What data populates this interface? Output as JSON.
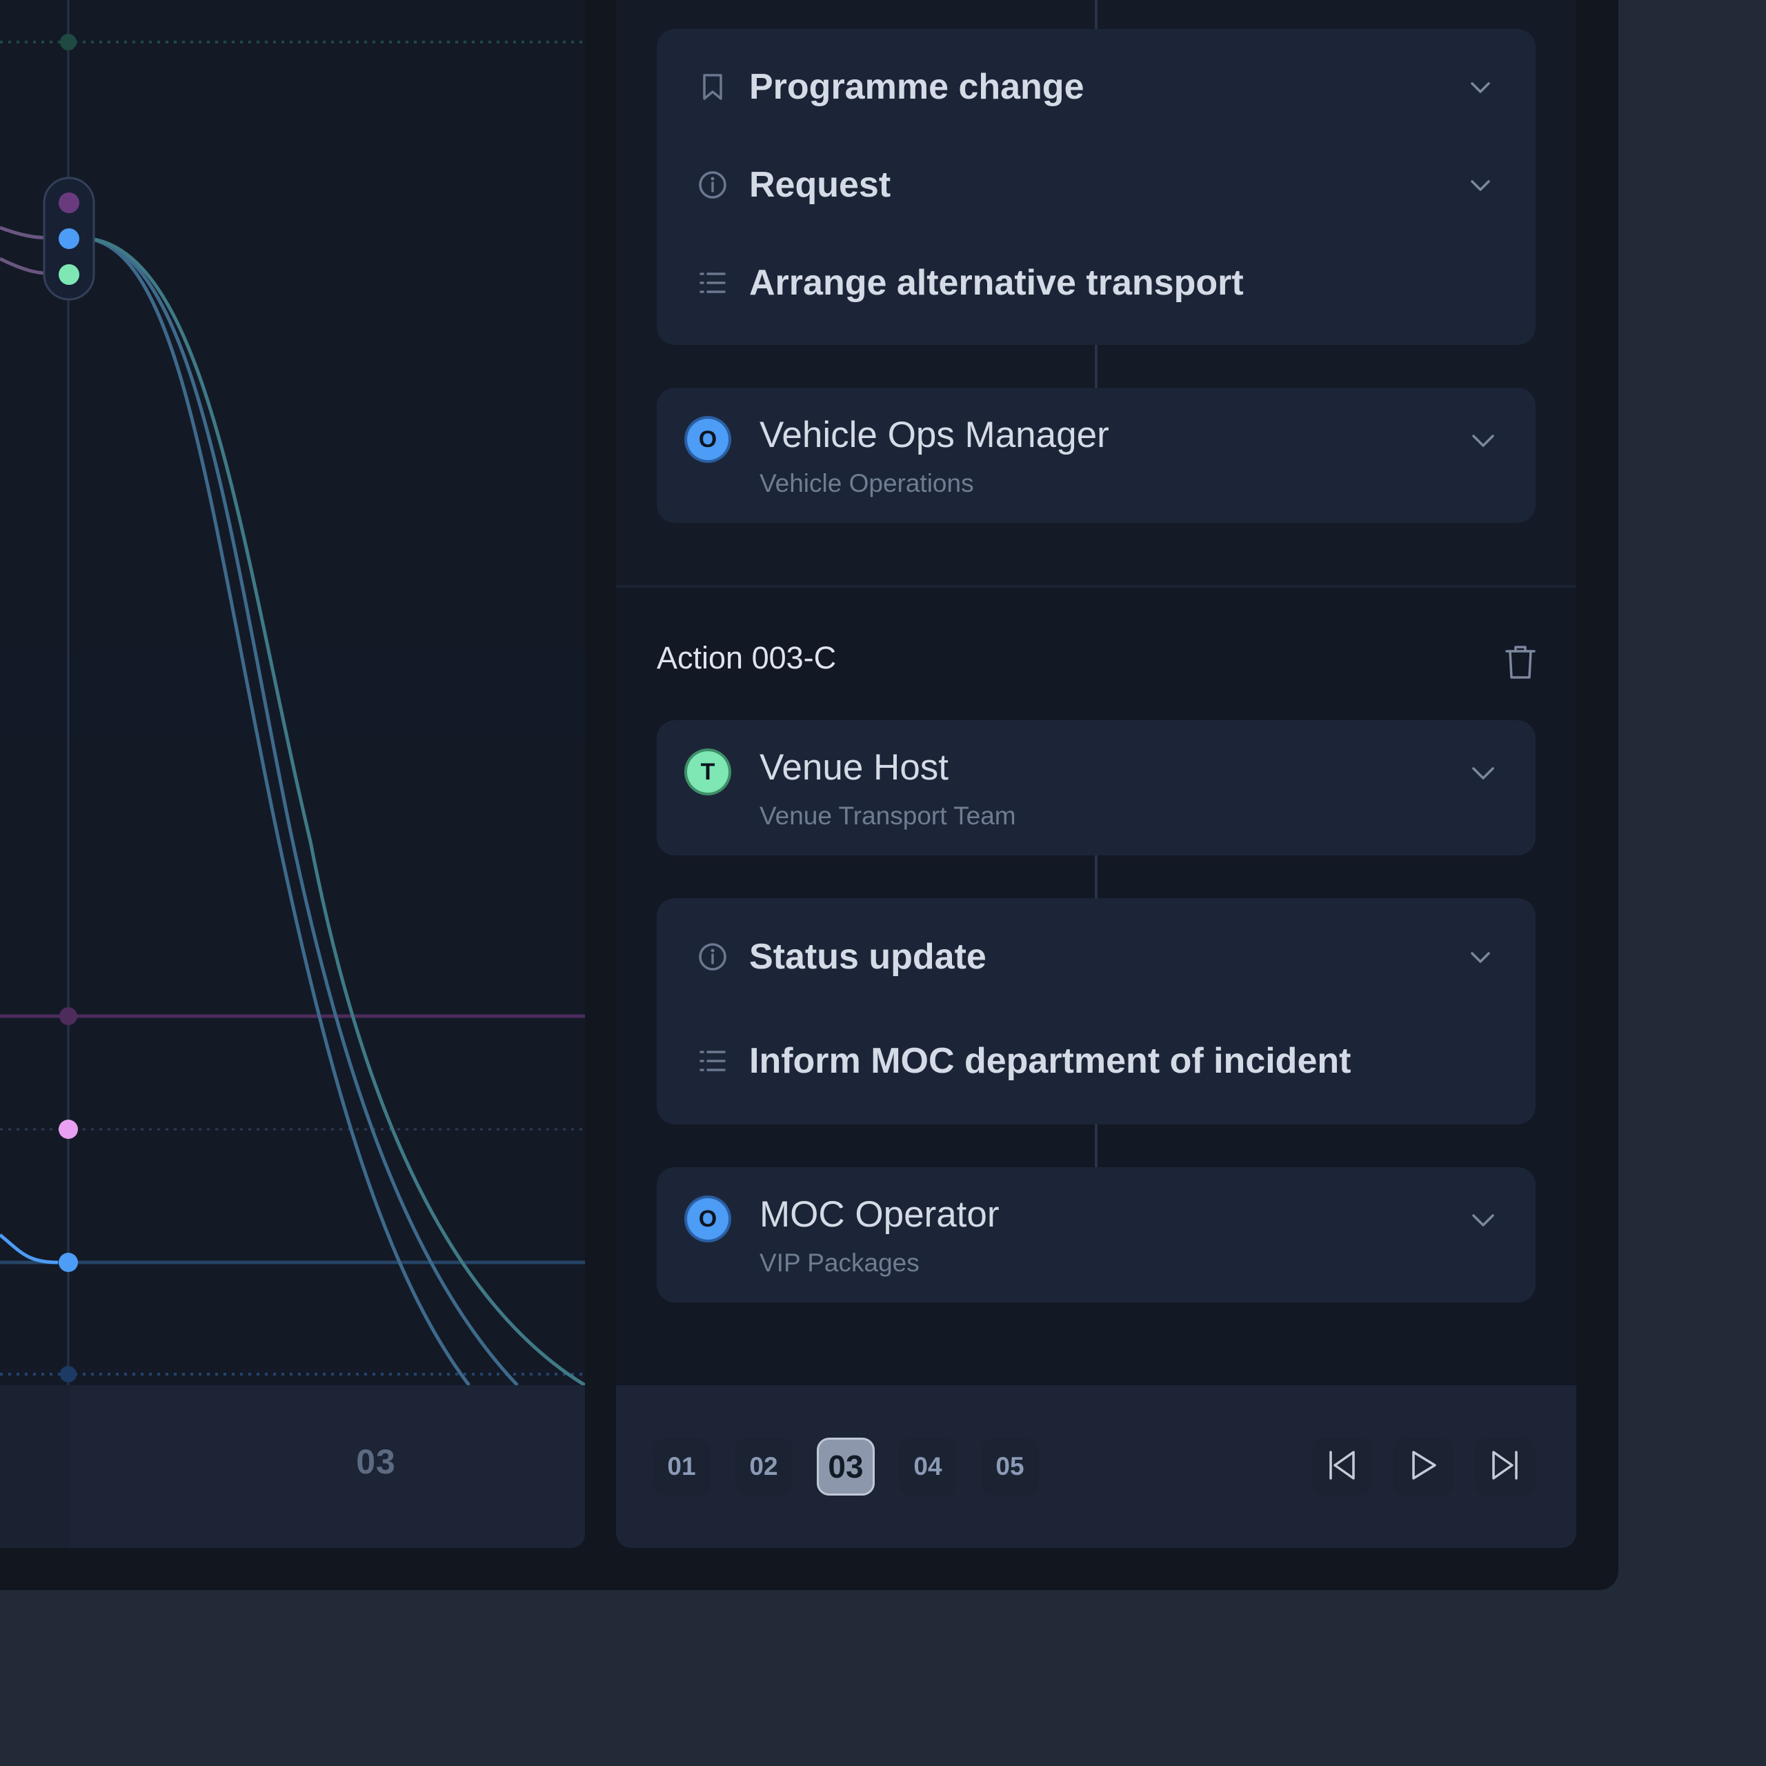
{
  "graph": {
    "column_label": "03"
  },
  "detail": {
    "flow_card": {
      "type_label": "Programme change",
      "category_label": "Request",
      "description": "Arrange alternative transport"
    },
    "assignee_1": {
      "initial": "O",
      "name": "Vehicle Ops Manager",
      "department": "Vehicle Operations",
      "avatar_color": "#4d9cf5"
    },
    "action": {
      "title": "Action 003-C",
      "assignee": {
        "initial": "T",
        "name": "Venue Host",
        "department": "Venue Transport Team",
        "avatar_color": "#7ee7b4"
      },
      "flow_card": {
        "category_label": "Status update",
        "description": "Inform MOC department of incident"
      },
      "recipient": {
        "initial": "O",
        "name": "MOC Operator",
        "department": "VIP Packages",
        "avatar_color": "#4d9cf5"
      }
    }
  },
  "footer": {
    "steps": [
      "01",
      "02",
      "03",
      "04",
      "05"
    ],
    "active_step": "03",
    "controls": [
      "skip-back",
      "play",
      "skip-forward"
    ]
  },
  "colors": {
    "accent_blue": "#4d9cf5",
    "accent_green": "#7ee7b4",
    "accent_purple": "#6a3a7e",
    "accent_pink": "#e9a0f2"
  }
}
